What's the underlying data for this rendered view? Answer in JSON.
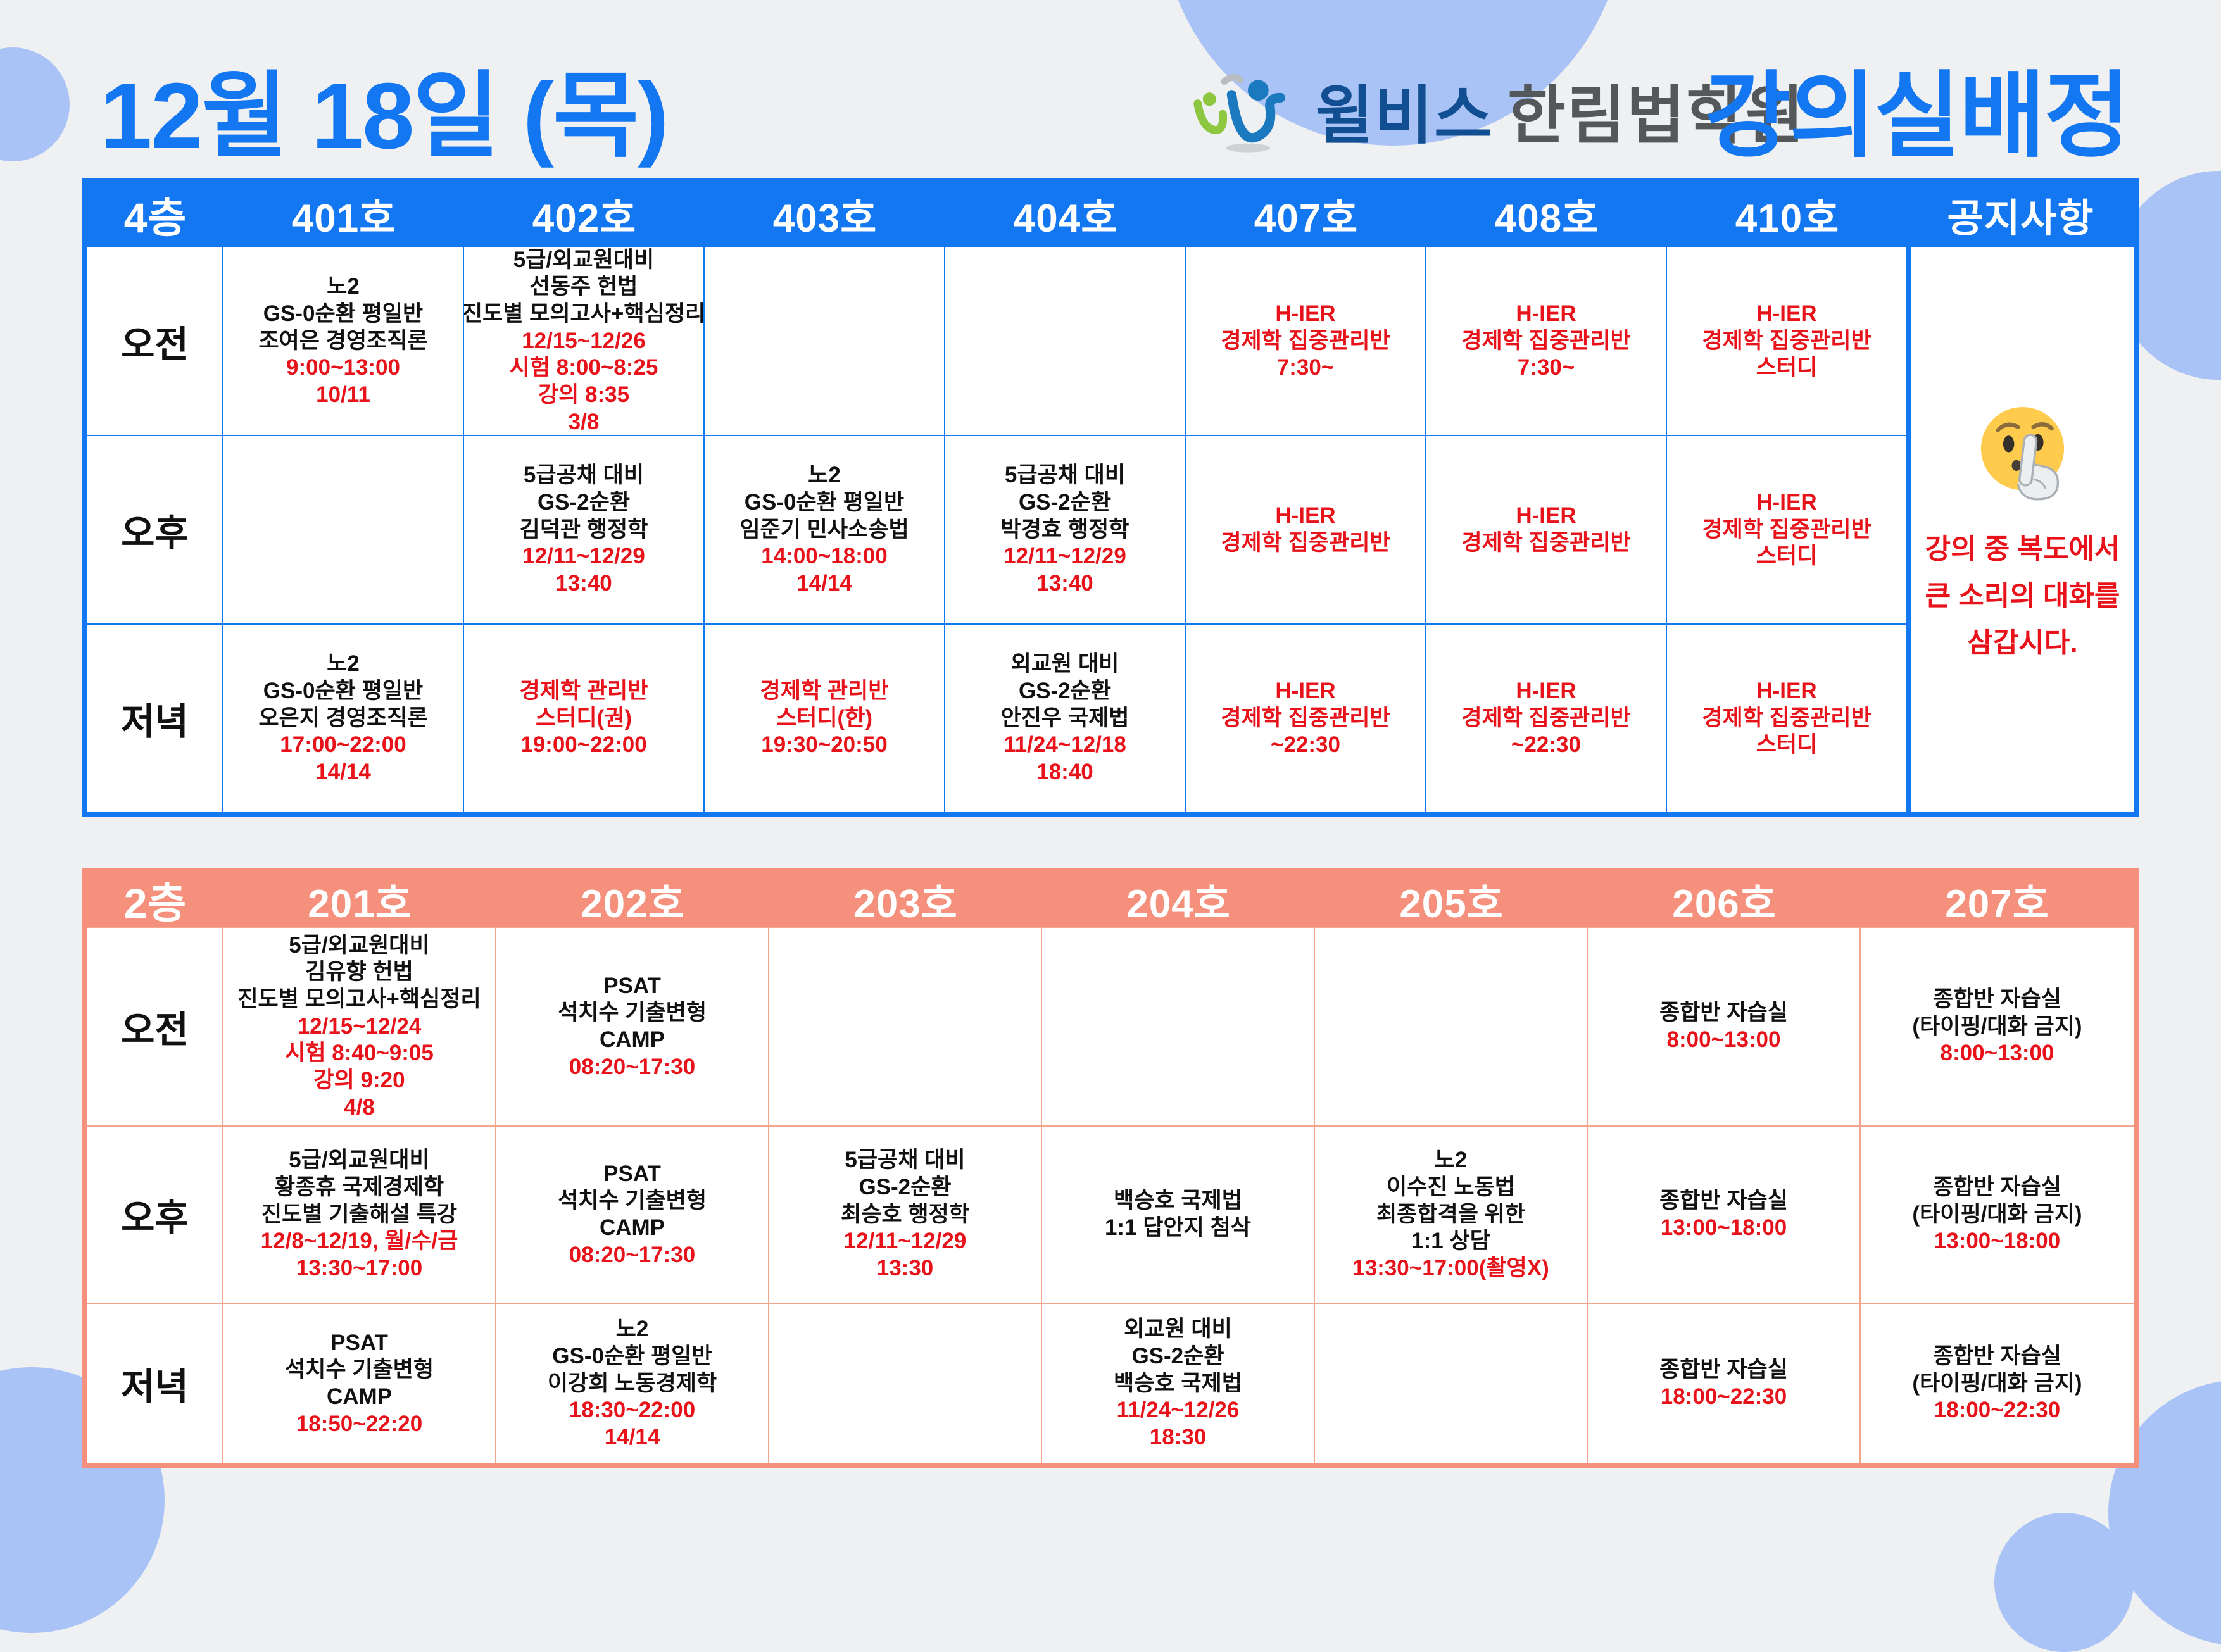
{
  "header": {
    "date_title": "12월 18일 (목)",
    "brand_name": "윌비스",
    "brand_academy": "한림법학원",
    "assignment_title": "강의실배정"
  },
  "colors": {
    "floor4_theme": "#1377f2",
    "floor2_theme": "#f4907c",
    "red_text": "#e8131a",
    "black_text": "#111111",
    "background": "#eff0f2",
    "decor_circle": "#a9c3f7",
    "brand_navy": "#124f92",
    "brand_gray": "#55585b"
  },
  "floor4": {
    "floor_label": "4층",
    "room_headers": [
      "401호",
      "402호",
      "403호",
      "404호",
      "407호",
      "408호",
      "410호"
    ],
    "notice_header": "공지사항",
    "notice": {
      "emoji": "shushing-face",
      "lines": [
        "강의 중 복도에서",
        "큰 소리의 대화를",
        "삼갑시다."
      ]
    },
    "time_rows": [
      {
        "label": "오전",
        "cells": [
          [
            {
              "text": "노2",
              "color": "black"
            },
            {
              "text": "GS-0순환 평일반",
              "color": "black"
            },
            {
              "text": "조여은 경영조직론",
              "color": "black"
            },
            {
              "text": "9:00~13:00",
              "color": "red"
            },
            {
              "text": "10/11",
              "color": "red"
            }
          ],
          [
            {
              "text": "5급/외교원대비",
              "color": "black"
            },
            {
              "text": "선동주 헌법",
              "color": "black"
            },
            {
              "text": "진도별 모의고사+핵심정리",
              "color": "black"
            },
            {
              "text": "12/15~12/26",
              "color": "red"
            },
            {
              "text": "시험 8:00~8:25",
              "color": "red"
            },
            {
              "text": "강의 8:35",
              "color": "red"
            },
            {
              "text": "3/8",
              "color": "red"
            }
          ],
          [],
          [],
          [
            {
              "text": "H-IER",
              "color": "red"
            },
            {
              "text": "경제학 집중관리반",
              "color": "red"
            },
            {
              "text": "7:30~",
              "color": "red"
            }
          ],
          [
            {
              "text": "H-IER",
              "color": "red"
            },
            {
              "text": "경제학 집중관리반",
              "color": "red"
            },
            {
              "text": "7:30~",
              "color": "red"
            }
          ],
          [
            {
              "text": "H-IER",
              "color": "red"
            },
            {
              "text": "경제학 집중관리반",
              "color": "red"
            },
            {
              "text": "스터디",
              "color": "red"
            }
          ]
        ]
      },
      {
        "label": "오후",
        "cells": [
          [],
          [
            {
              "text": "5급공채 대비",
              "color": "black"
            },
            {
              "text": "GS-2순환",
              "color": "black"
            },
            {
              "text": "김덕관 행정학",
              "color": "black"
            },
            {
              "text": "12/11~12/29",
              "color": "red"
            },
            {
              "text": "13:40",
              "color": "red"
            }
          ],
          [
            {
              "text": "노2",
              "color": "black"
            },
            {
              "text": "GS-0순환 평일반",
              "color": "black"
            },
            {
              "text": "임준기 민사소송법",
              "color": "black"
            },
            {
              "text": "14:00~18:00",
              "color": "red"
            },
            {
              "text": "14/14",
              "color": "red"
            }
          ],
          [
            {
              "text": "5급공채 대비",
              "color": "black"
            },
            {
              "text": "GS-2순환",
              "color": "black"
            },
            {
              "text": "박경효 행정학",
              "color": "black"
            },
            {
              "text": "12/11~12/29",
              "color": "red"
            },
            {
              "text": "13:40",
              "color": "red"
            }
          ],
          [
            {
              "text": "H-IER",
              "color": "red"
            },
            {
              "text": "경제학 집중관리반",
              "color": "red"
            }
          ],
          [
            {
              "text": "H-IER",
              "color": "red"
            },
            {
              "text": "경제학 집중관리반",
              "color": "red"
            }
          ],
          [
            {
              "text": "H-IER",
              "color": "red"
            },
            {
              "text": "경제학 집중관리반",
              "color": "red"
            },
            {
              "text": "스터디",
              "color": "red"
            }
          ]
        ]
      },
      {
        "label": "저녁",
        "cells": [
          [
            {
              "text": "노2",
              "color": "black"
            },
            {
              "text": "GS-0순환 평일반",
              "color": "black"
            },
            {
              "text": "오은지 경영조직론",
              "color": "black"
            },
            {
              "text": "17:00~22:00",
              "color": "red"
            },
            {
              "text": "14/14",
              "color": "red"
            }
          ],
          [
            {
              "text": "경제학 관리반",
              "color": "red"
            },
            {
              "text": "스터디(권)",
              "color": "red"
            },
            {
              "text": "19:00~22:00",
              "color": "red"
            }
          ],
          [
            {
              "text": "경제학 관리반",
              "color": "red"
            },
            {
              "text": "스터디(한)",
              "color": "red"
            },
            {
              "text": "19:30~20:50",
              "color": "red"
            }
          ],
          [
            {
              "text": "외교원 대비",
              "color": "black"
            },
            {
              "text": "GS-2순환",
              "color": "black"
            },
            {
              "text": "안진우 국제법",
              "color": "black"
            },
            {
              "text": "11/24~12/18",
              "color": "red"
            },
            {
              "text": "18:40",
              "color": "red"
            }
          ],
          [
            {
              "text": "H-IER",
              "color": "red"
            },
            {
              "text": "경제학 집중관리반",
              "color": "red"
            },
            {
              "text": "~22:30",
              "color": "red"
            }
          ],
          [
            {
              "text": "H-IER",
              "color": "red"
            },
            {
              "text": "경제학 집중관리반",
              "color": "red"
            },
            {
              "text": "~22:30",
              "color": "red"
            }
          ],
          [
            {
              "text": "H-IER",
              "color": "red"
            },
            {
              "text": "경제학 집중관리반",
              "color": "red"
            },
            {
              "text": "스터디",
              "color": "red"
            }
          ]
        ]
      }
    ]
  },
  "floor2": {
    "floor_label": "2층",
    "room_headers": [
      "201호",
      "202호",
      "203호",
      "204호",
      "205호",
      "206호",
      "207호"
    ],
    "time_rows": [
      {
        "label": "오전",
        "cells": [
          [
            {
              "text": "5급/외교원대비",
              "color": "black"
            },
            {
              "text": "김유향 헌법",
              "color": "black"
            },
            {
              "text": "진도별 모의고사+핵심정리",
              "color": "black"
            },
            {
              "text": "12/15~12/24",
              "color": "red"
            },
            {
              "text": "시험 8:40~9:05",
              "color": "red"
            },
            {
              "text": "강의 9:20",
              "color": "red"
            },
            {
              "text": "4/8",
              "color": "red"
            }
          ],
          [
            {
              "text": "PSAT",
              "color": "black"
            },
            {
              "text": "석치수 기출변형",
              "color": "black"
            },
            {
              "text": "CAMP",
              "color": "black"
            },
            {
              "text": "08:20~17:30",
              "color": "red"
            }
          ],
          [],
          [],
          [],
          [
            {
              "text": "종합반 자습실",
              "color": "black"
            },
            {
              "text": "8:00~13:00",
              "color": "red"
            }
          ],
          [
            {
              "text": "종합반 자습실",
              "color": "black"
            },
            {
              "text": "(타이핑/대화 금지)",
              "color": "black"
            },
            {
              "text": "8:00~13:00",
              "color": "red"
            }
          ]
        ]
      },
      {
        "label": "오후",
        "cells": [
          [
            {
              "text": "5급/외교원대비",
              "color": "black"
            },
            {
              "text": "황종휴 국제경제학",
              "color": "black"
            },
            {
              "text": "진도별 기출해설 특강",
              "color": "black"
            },
            {
              "text": "12/8~12/19, 월/수/금",
              "color": "red"
            },
            {
              "text": "13:30~17:00",
              "color": "red"
            }
          ],
          [
            {
              "text": "PSAT",
              "color": "black"
            },
            {
              "text": "석치수 기출변형",
              "color": "black"
            },
            {
              "text": "CAMP",
              "color": "black"
            },
            {
              "text": "08:20~17:30",
              "color": "red"
            }
          ],
          [
            {
              "text": "5급공채 대비",
              "color": "black"
            },
            {
              "text": "GS-2순환",
              "color": "black"
            },
            {
              "text": "최승호 행정학",
              "color": "black"
            },
            {
              "text": "12/11~12/29",
              "color": "red"
            },
            {
              "text": "13:30",
              "color": "red"
            }
          ],
          [
            {
              "text": "백승호 국제법",
              "color": "black"
            },
            {
              "text": "1:1 답안지 첨삭",
              "color": "black"
            }
          ],
          [
            {
              "text": "노2",
              "color": "black"
            },
            {
              "text": "이수진 노동법",
              "color": "black"
            },
            {
              "text": "최종합격을 위한",
              "color": "black"
            },
            {
              "text": "1:1 상담",
              "color": "black"
            },
            {
              "text": "13:30~17:00(촬영X)",
              "color": "red"
            }
          ],
          [
            {
              "text": "종합반 자습실",
              "color": "black"
            },
            {
              "text": "13:00~18:00",
              "color": "red"
            }
          ],
          [
            {
              "text": "종합반 자습실",
              "color": "black"
            },
            {
              "text": "(타이핑/대화 금지)",
              "color": "black"
            },
            {
              "text": "13:00~18:00",
              "color": "red"
            }
          ]
        ]
      },
      {
        "label": "저녁",
        "cells": [
          [
            {
              "text": "PSAT",
              "color": "black"
            },
            {
              "text": "석치수 기출변형",
              "color": "black"
            },
            {
              "text": "CAMP",
              "color": "black"
            },
            {
              "text": "18:50~22:20",
              "color": "red"
            }
          ],
          [
            {
              "text": "노2",
              "color": "black"
            },
            {
              "text": "GS-0순환 평일반",
              "color": "black"
            },
            {
              "text": "이강희 노동경제학",
              "color": "black"
            },
            {
              "text": "18:30~22:00",
              "color": "red"
            },
            {
              "text": "14/14",
              "color": "red"
            }
          ],
          [],
          [
            {
              "text": "외교원 대비",
              "color": "black"
            },
            {
              "text": "GS-2순환",
              "color": "black"
            },
            {
              "text": "백승호 국제법",
              "color": "black"
            },
            {
              "text": "11/24~12/26",
              "color": "red"
            },
            {
              "text": "18:30",
              "color": "red"
            }
          ],
          [],
          [
            {
              "text": "종합반 자습실",
              "color": "black"
            },
            {
              "text": "18:00~22:30",
              "color": "red"
            }
          ],
          [
            {
              "text": "종합반 자습실",
              "color": "black"
            },
            {
              "text": "(타이핑/대화 금지)",
              "color": "black"
            },
            {
              "text": "18:00~22:30",
              "color": "red"
            }
          ]
        ]
      }
    ]
  }
}
